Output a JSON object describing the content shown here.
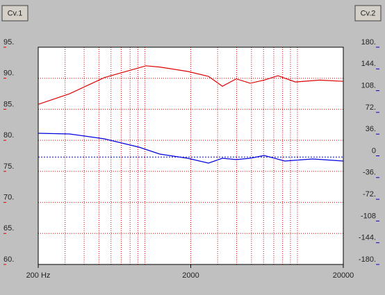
{
  "buttons": [
    "Cv.1",
    "Cv.2"
  ],
  "chart_data": {
    "type": "line",
    "xscale": "log",
    "grid": true,
    "grid_color": "#e00000",
    "xlim": [
      200,
      20000
    ],
    "xticks": [
      {
        "value": 200,
        "label": "200 Hz"
      },
      2000,
      20000
    ],
    "xgrid": [
      200,
      300,
      400,
      500,
      600,
      700,
      800,
      900,
      1000,
      2000,
      3000,
      4000,
      5000,
      6000,
      7000,
      8000,
      9000,
      10000,
      20000
    ],
    "ylim": [
      60,
      95
    ],
    "yticks": [
      {
        "value": 60,
        "label": "60."
      },
      {
        "value": 65,
        "label": "65."
      },
      {
        "value": 70,
        "label": "70."
      },
      {
        "value": 75,
        "label": "75."
      },
      {
        "value": 80,
        "label": "80."
      },
      {
        "value": 85,
        "label": "85."
      },
      {
        "value": 90,
        "label": "90."
      },
      {
        "value": 95,
        "label": "95."
      }
    ],
    "y2lim": [
      -180,
      180
    ],
    "y2ticks": [
      {
        "value": -180,
        "label": "-180."
      },
      {
        "value": -144,
        "label": "-144."
      },
      {
        "value": -108,
        "label": "-108"
      },
      {
        "value": -72,
        "label": "-72."
      },
      {
        "value": -36,
        "label": "-36."
      },
      0,
      {
        "value": 36,
        "label": "36."
      },
      {
        "value": 72,
        "label": "72."
      },
      {
        "value": 108,
        "label": "108."
      },
      {
        "value": 144,
        "label": "144."
      },
      {
        "value": 180,
        "label": "180."
      }
    ],
    "y2_reference_line": -2,
    "y2_reference_color": "#0000e0",
    "series": [
      {
        "color": "#e00000",
        "x": [
          200,
          321,
          542,
          1016,
          1254,
          1908,
          2614,
          3222,
          3973,
          4905,
          6046,
          7460,
          9700,
          14000,
          20000
        ],
        "values": [
          85.8,
          87.5,
          90.1,
          92.0,
          91.8,
          91.1,
          90.3,
          88.7,
          89.9,
          89.2,
          89.7,
          90.4,
          89.4,
          89.7,
          89.5
        ]
      },
      {
        "color": "#0000e0",
        "axis": "y2",
        "x": [
          200,
          321,
          542,
          916,
          1254,
          1908,
          2614,
          3222,
          3973,
          4905,
          6046,
          8280,
          12600,
          20000
        ],
        "values": [
          37.4,
          36.2,
          28.2,
          14.4,
          2.9,
          -4,
          -12.1,
          -4,
          -6.2,
          -4,
          0.6,
          -8.6,
          -5.2,
          -8.6
        ]
      }
    ]
  }
}
